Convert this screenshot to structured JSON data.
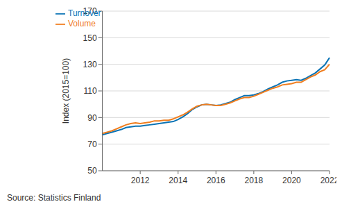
{
  "chart_data": {
    "type": "line",
    "ylabel": "Index (2015=100)",
    "source": "Source: Statistics Finland",
    "categories": [
      null,
      null,
      null,
      null,
      null,
      null,
      null,
      null,
      "2012",
      null,
      null,
      null,
      null,
      null,
      null,
      null,
      "2014",
      null,
      null,
      null,
      null,
      null,
      null,
      null,
      "2016",
      null,
      null,
      null,
      null,
      null,
      null,
      null,
      "2018",
      null,
      null,
      null,
      null,
      null,
      null,
      null,
      "2020",
      null,
      null,
      null,
      null,
      null,
      null,
      null,
      "2022"
    ],
    "series": [
      {
        "name": "Turnover",
        "color": "#0a73b5",
        "values": [
          77,
          78,
          79,
          80,
          81,
          82.5,
          83,
          83.5,
          83.5,
          84,
          84.5,
          85,
          85.5,
          86,
          86.5,
          87,
          88.5,
          90.5,
          93,
          96,
          98,
          99.5,
          100,
          99.5,
          99,
          99.5,
          100.5,
          101.5,
          103.5,
          105,
          106.5,
          106.5,
          107,
          108,
          109.5,
          111.5,
          113,
          114.5,
          116.5,
          117.5,
          118,
          118.5,
          118,
          119.5,
          121.5,
          123.5,
          126.5,
          129.5,
          135
        ]
      },
      {
        "name": "Volume",
        "color": "#f07d1e",
        "values": [
          78,
          79,
          80,
          81.5,
          83,
          84.5,
          85.5,
          86,
          85.5,
          86,
          86.5,
          87.5,
          87.5,
          88,
          88,
          89,
          90.5,
          92,
          94,
          96.5,
          98.5,
          99.5,
          100,
          99.5,
          99,
          99,
          100,
          101,
          102.5,
          104,
          105,
          105,
          106,
          107.5,
          109,
          110.5,
          112,
          113,
          114.5,
          115,
          115.5,
          116.5,
          116.5,
          118.5,
          120.5,
          122,
          124.5,
          126,
          130
        ]
      }
    ],
    "ylim": [
      50,
      170
    ],
    "yticks": [
      50,
      70,
      90,
      110,
      130,
      150,
      170
    ],
    "grid": true,
    "legend": "upper left",
    "line_style": "solid"
  }
}
